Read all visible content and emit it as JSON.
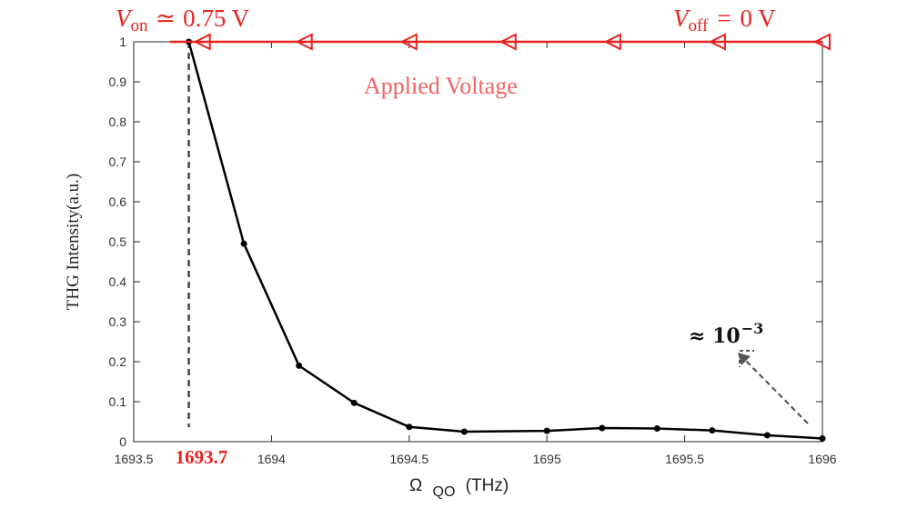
{
  "chart_data": {
    "type": "line",
    "xlabel": "Ω",
    "xlabel_sub": "QO",
    "xlabel_unit": "(THz)",
    "ylabel": "THG Intensity(a.u.)",
    "xlim": [
      1693.5,
      1696
    ],
    "ylim": [
      0,
      1
    ],
    "x_ticks": [
      1693.5,
      1694,
      1694.5,
      1695,
      1695.5,
      1696
    ],
    "x_tick_labels": [
      "1693.5",
      "1694",
      "1694.5",
      "1695",
      "1695.5",
      "1696"
    ],
    "y_ticks": [
      0,
      0.1,
      0.2,
      0.3,
      0.4,
      0.5,
      0.6,
      0.7,
      0.8,
      0.9,
      1
    ],
    "y_tick_labels": [
      "0",
      "0.1",
      "0.2",
      "0.3",
      "0.4",
      "0.5",
      "0.6",
      "0.7",
      "0.8",
      "0.9",
      "1"
    ],
    "grid": false,
    "series": [
      {
        "name": "THG Intensity",
        "color": "#000000",
        "x": [
          1693.7,
          1693.9,
          1694.1,
          1694.3,
          1694.5,
          1694.7,
          1695.0,
          1695.2,
          1695.4,
          1695.6,
          1695.8,
          1696.0
        ],
        "y": [
          1.0,
          0.495,
          0.19,
          0.097,
          0.037,
          0.025,
          0.027,
          0.034,
          0.033,
          0.028,
          0.016,
          0.008
        ]
      }
    ],
    "voltage_line": {
      "name": "Applied Voltage",
      "color": "#e8231f",
      "y": 1.0,
      "arrow_x": [
        1693.75,
        1694.12,
        1694.5,
        1694.86,
        1695.24,
        1695.62,
        1696.0
      ],
      "direction": "left"
    },
    "highlight_x": {
      "value": 1693.7,
      "label": "1693.7",
      "color": "#e8231f"
    },
    "annotations": {
      "v_on": {
        "symbol": "V",
        "sub": "on",
        "relation": "≃",
        "value": "0.75 V"
      },
      "v_off": {
        "symbol": "V",
        "sub": "off",
        "relation": "=",
        "value": "0 V"
      },
      "applied_voltage": "Applied Voltage",
      "approx": {
        "prefix": "≈ 10",
        "exponent": "−3"
      }
    }
  }
}
